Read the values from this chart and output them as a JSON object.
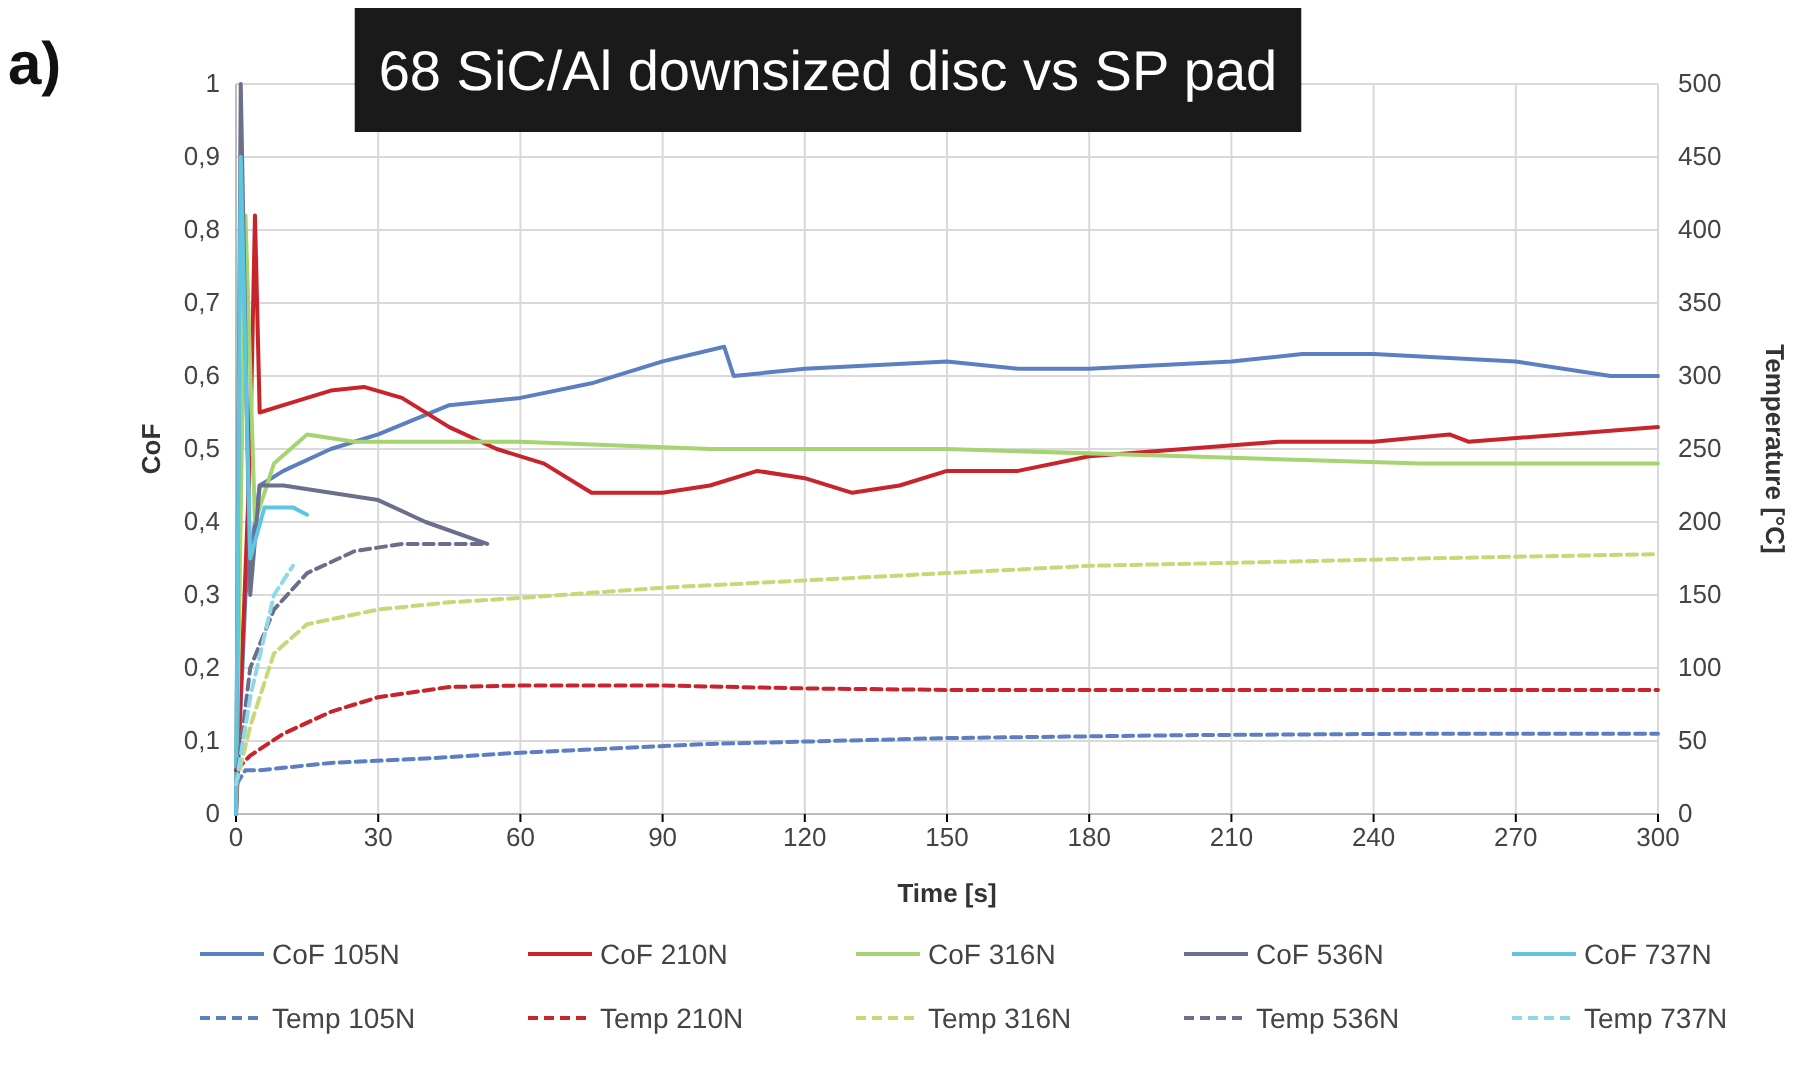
{
  "chart_data": {
    "type": "line",
    "title": "68 SiC/Al downsized disc vs SP pad",
    "xlabel": "Time [s]",
    "ylabel": "CoF",
    "y2label": "Temperature [°C]",
    "annotations": [
      "a)"
    ],
    "xlim": [
      0,
      300
    ],
    "xticks": [
      0,
      30,
      60,
      90,
      120,
      150,
      180,
      210,
      240,
      270,
      300
    ],
    "ylim": [
      0,
      1
    ],
    "yticks": [
      0,
      {
        "value": 0.1,
        "label": "0,1"
      },
      {
        "value": 0.2,
        "label": "0,2"
      },
      {
        "value": 0.3,
        "label": "0,3"
      },
      {
        "value": 0.4,
        "label": "0,4"
      },
      {
        "value": 0.5,
        "label": "0,5"
      },
      {
        "value": 0.6,
        "label": "0,6"
      },
      {
        "value": 0.7,
        "label": "0,7"
      },
      {
        "value": 0.8,
        "label": "0,8"
      },
      {
        "value": 0.9,
        "label": "0,9"
      },
      1
    ],
    "y2lim": [
      0,
      500
    ],
    "y2ticks": [
      0,
      50,
      100,
      150,
      200,
      250,
      300,
      350,
      400,
      450,
      500
    ],
    "grid": true,
    "legend": "bottom",
    "marker": "none",
    "series": [
      {
        "name": "CoF 105N",
        "color": "#5b7fc0",
        "line_style": "solid",
        "x": [
          0,
          2,
          5,
          10,
          20,
          30,
          45,
          60,
          75,
          90,
          103,
          105,
          120,
          150,
          165,
          180,
          210,
          225,
          240,
          270,
          290,
          300
        ],
        "values": [
          0,
          0.3,
          0.45,
          0.47,
          0.5,
          0.52,
          0.56,
          0.57,
          0.59,
          0.62,
          0.64,
          0.6,
          0.61,
          0.62,
          0.61,
          0.61,
          0.62,
          0.63,
          0.63,
          0.62,
          0.6,
          0.6
        ]
      },
      {
        "name": "CoF 210N",
        "color": "#c8242c",
        "line_style": "solid",
        "x": [
          0,
          3,
          4,
          5,
          10,
          20,
          27,
          35,
          45,
          55,
          65,
          75,
          90,
          100,
          110,
          120,
          130,
          140,
          150,
          165,
          180,
          200,
          220,
          240,
          256,
          260,
          280,
          300
        ],
        "values": [
          0,
          0.5,
          0.82,
          0.55,
          0.56,
          0.58,
          0.585,
          0.57,
          0.53,
          0.5,
          0.48,
          0.44,
          0.44,
          0.45,
          0.47,
          0.46,
          0.44,
          0.45,
          0.47,
          0.47,
          0.49,
          0.5,
          0.51,
          0.51,
          0.52,
          0.51,
          0.52,
          0.53
        ]
      },
      {
        "name": "CoF 316N",
        "color": "#a6d470",
        "line_style": "solid",
        "x": [
          0,
          2,
          4,
          8,
          15,
          25,
          40,
          60,
          100,
          150,
          200,
          250,
          300
        ],
        "values": [
          0,
          0.82,
          0.4,
          0.48,
          0.52,
          0.51,
          0.51,
          0.51,
          0.5,
          0.5,
          0.49,
          0.48,
          0.48
        ]
      },
      {
        "name": "CoF 536N",
        "color": "#6b6f8c",
        "line_style": "solid",
        "x": [
          0,
          1,
          3,
          5,
          10,
          20,
          30,
          40,
          53
        ],
        "values": [
          0,
          1,
          0.3,
          0.45,
          0.45,
          0.44,
          0.43,
          0.4,
          0.37
        ]
      },
      {
        "name": "CoF 737N",
        "color": "#5ec6e0",
        "line_style": "solid",
        "x": [
          0,
          1,
          3,
          6,
          12,
          15
        ],
        "values": [
          0,
          0.9,
          0.35,
          0.42,
          0.42,
          0.41
        ]
      },
      {
        "name": "Temp 105N",
        "color": "#5b7fc0",
        "line_style": "dashed",
        "axis": "y2",
        "x": [
          0,
          2,
          5,
          20,
          40,
          60,
          100,
          150,
          200,
          250,
          300
        ],
        "values": [
          20,
          30,
          30,
          35,
          38,
          42,
          48,
          52,
          54,
          55,
          55
        ]
      },
      {
        "name": "Temp 210N",
        "color": "#c8242c",
        "line_style": "dashed",
        "axis": "y2",
        "x": [
          0,
          3,
          10,
          20,
          30,
          45,
          60,
          90,
          120,
          150,
          200,
          300
        ],
        "values": [
          30,
          40,
          55,
          70,
          80,
          87,
          88,
          88,
          86,
          85,
          85,
          85
        ]
      },
      {
        "name": "Temp 316N",
        "color": "#c8d878",
        "line_style": "dashed",
        "axis": "y2",
        "x": [
          0,
          3,
          8,
          15,
          30,
          45,
          60,
          90,
          120,
          150,
          180,
          210,
          250,
          300
        ],
        "values": [
          20,
          60,
          110,
          130,
          140,
          145,
          148,
          155,
          160,
          165,
          170,
          172,
          175,
          178
        ]
      },
      {
        "name": "Temp 536N",
        "color": "#6b6f8c",
        "line_style": "dashed",
        "axis": "y2",
        "x": [
          0,
          3,
          8,
          15,
          25,
          35,
          53
        ],
        "values": [
          20,
          100,
          140,
          165,
          180,
          185,
          185
        ]
      },
      {
        "name": "Temp 737N",
        "color": "#8fd8e8",
        "line_style": "dashed",
        "axis": "y2",
        "x": [
          0,
          3,
          8,
          12
        ],
        "values": [
          20,
          80,
          150,
          170
        ]
      }
    ]
  }
}
